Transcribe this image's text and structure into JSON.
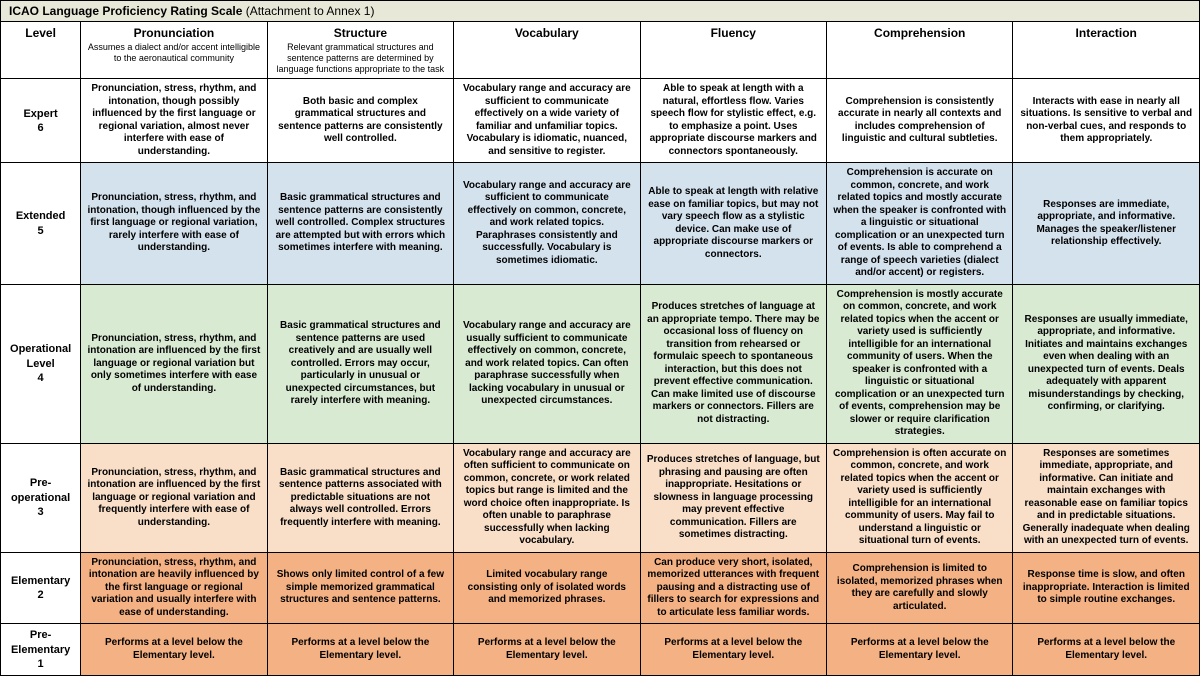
{
  "title": "ICAO Language Proficiency Rating Scale",
  "title_suffix": " (Attachment to Annex 1)",
  "columns": [
    {
      "label": "Level",
      "sub": ""
    },
    {
      "label": "Pronunciation",
      "sub": "Assumes a dialect and/or accent intelligible to the aeronautical community"
    },
    {
      "label": "Structure",
      "sub": "Relevant grammatical structures and sentence patterns are determined by language functions appropriate to the task"
    },
    {
      "label": "Vocabulary",
      "sub": ""
    },
    {
      "label": "Fluency",
      "sub": ""
    },
    {
      "label": "Comprehension",
      "sub": ""
    },
    {
      "label": "Interaction",
      "sub": ""
    }
  ],
  "rows": [
    {
      "level": "Expert\n6",
      "css": "row-expert",
      "cells": [
        "Pronunciation, stress, rhythm, and intonation, though possibly influenced by the first language or regional variation, almost never interfere with ease of understanding.",
        "Both basic and complex grammatical structures and sentence patterns are consistently well controlled.",
        "Vocabulary range and accuracy are sufficient to communicate effectively on a wide variety of familiar and unfamiliar topics. Vocabulary is idiomatic, nuanced, and sensitive to register.",
        "Able to speak at length with a natural, effortless flow. Varies speech flow for stylistic effect, e.g. to emphasize a point. Uses appropriate discourse markers and connectors spontaneously.",
        "Comprehension is consistently accurate in nearly all contexts and includes comprehension of linguistic and cultural subtleties.",
        "Interacts with ease in nearly all situations. Is sensitive to verbal and non-verbal cues, and responds to them appropriately."
      ]
    },
    {
      "level": "Extended\n5",
      "css": "row-extended",
      "cells": [
        "Pronunciation, stress, rhythm, and intonation, though influenced by the first language or regional variation, rarely interfere with ease of understanding.",
        "Basic grammatical structures and sentence patterns are consistently well controlled. Complex structures are attempted but with errors which sometimes interfere with meaning.",
        "Vocabulary range and accuracy are sufficient to communicate effectively on common, concrete, and work related topics. Paraphrases consistently and successfully. Vocabulary is sometimes idiomatic.",
        "Able to speak at length with relative ease on familiar topics, but may not vary speech flow as a stylistic device. Can make use of appropriate discourse markers or connectors.",
        "Comprehension is accurate on common, concrete, and work related topics and mostly accurate when the speaker is confronted with a linguistic or situational complication or an unexpected turn of events. Is able to comprehend a range of speech varieties (dialect and/or accent) or registers.",
        "Responses are immediate, appropriate, and informative. Manages the speaker/listener relationship effectively."
      ]
    },
    {
      "level": "Operational Level\n4",
      "css": "row-operational",
      "cells": [
        "Pronunciation, stress, rhythm, and intonation are influenced by the first language or regional variation but only sometimes interfere with ease of understanding.",
        "Basic grammatical structures and sentence patterns are used creatively and are usually well controlled. Errors may occur, particularly in unusual or unexpected circumstances, but rarely interfere with meaning.",
        "Vocabulary range and accuracy are usually sufficient to communicate effectively on common, concrete, and work related topics. Can often paraphrase successfully when lacking vocabulary in unusual or unexpected circumstances.",
        "Produces stretches of language at an appropriate tempo. There may be occasional loss of fluency on transition from rehearsed or formulaic speech to spontaneous interaction, but this does not prevent effective communication. Can make limited use of discourse markers or connectors. Fillers are not distracting.",
        "Comprehension is mostly accurate on common, concrete, and work related topics when the accent or variety used is sufficiently intelligible for an international community of users. When the speaker is confronted with a linguistic or situational complication or an unexpected turn of events, comprehension may be slower or require clarification strategies.",
        "Responses are usually immediate, appropriate, and informative. Initiates and maintains exchanges even when dealing with an unexpected turn of events. Deals adequately with apparent misunderstandings by checking, confirming, or clarifying."
      ]
    },
    {
      "level": "Pre-operational\n3",
      "css": "row-preop",
      "cells": [
        "Pronunciation, stress, rhythm, and intonation are influenced by the first language or regional variation and frequently interfere with ease of understanding.",
        "Basic grammatical structures and sentence patterns associated with predictable situations are not always well controlled. Errors frequently interfere with meaning.",
        "Vocabulary range and accuracy are often sufficient to communicate on common, concrete, or work related topics but range is limited and the word choice often inappropriate. Is often unable to paraphrase successfully when lacking vocabulary.",
        "Produces stretches of language, but phrasing and pausing are often inappropriate. Hesitations or slowness in language processing may prevent effective communication. Fillers are sometimes distracting.",
        "Comprehension is often accurate on common, concrete, and work related topics when the accent or variety used is sufficiently intelligible for an international community of users. May fail to understand a linguistic or situational turn of events.",
        "Responses are sometimes immediate, appropriate, and informative. Can initiate and maintain exchanges with reasonable ease on familiar topics and in predictable situations. Generally inadequate when dealing with an unexpected turn of events."
      ]
    },
    {
      "level": "Elementary\n2",
      "css": "row-elem",
      "cells": [
        "Pronunciation, stress, rhythm, and intonation are heavily influenced by the first language or regional variation and usually interfere with ease of understanding.",
        "Shows only limited control of a few simple memorized grammatical structures and sentence patterns.",
        "Limited vocabulary range consisting only of isolated words and memorized phrases.",
        "Can produce very short, isolated, memorized utterances with frequent pausing and a distracting use of fillers to search for expressions and to articulate less familiar words.",
        "Comprehension is limited to isolated, memorized phrases when they are carefully and slowly articulated.",
        "Response time is slow, and often inappropriate. Interaction is limited to simple routine exchanges."
      ]
    },
    {
      "level": "Pre-Elementary\n1",
      "css": "row-preelem",
      "cells": [
        "Performs at a level below the Elementary level.",
        "Performs at a level below the Elementary level.",
        "Performs at a level below the Elementary level.",
        "Performs at a level below the Elementary level.",
        "Performs at a level below the Elementary level.",
        "Performs at a level below the Elementary level."
      ]
    }
  ]
}
